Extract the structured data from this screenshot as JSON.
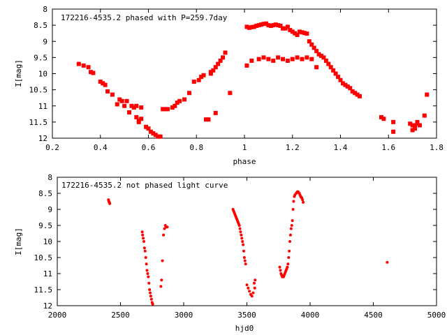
{
  "chart_data": [
    {
      "type": "scatter",
      "title": "172216-4535.2 phased with P=259.7day",
      "xlabel": "phase",
      "ylabel": "I[mag]",
      "xlim": [
        0.2,
        1.8
      ],
      "ylim": [
        12,
        8
      ],
      "y_inverted": true,
      "grid": false,
      "marker": "filled-square",
      "color": "#ff0000",
      "xticks": [
        "0.2",
        "0.4",
        "0.6",
        "0.8",
        "1",
        "1.2",
        "1.4",
        "1.6",
        "1.8"
      ],
      "yticks": [
        "8",
        "8.5",
        "9",
        "9.5",
        "10",
        "10.5",
        "11",
        "11.5",
        "12"
      ],
      "x": [
        0.31,
        0.33,
        0.35,
        0.36,
        0.37,
        0.4,
        0.41,
        0.42,
        0.43,
        0.45,
        0.47,
        0.48,
        0.49,
        0.5,
        0.51,
        0.52,
        0.53,
        0.54,
        0.55,
        0.55,
        0.56,
        0.56,
        0.57,
        0.57,
        0.59,
        0.6,
        0.61,
        0.62,
        0.63,
        0.64,
        0.65,
        0.66,
        0.67,
        0.68,
        0.7,
        0.71,
        0.72,
        0.73,
        0.75,
        0.77,
        0.79,
        0.81,
        0.82,
        0.83,
        0.84,
        0.85,
        0.86,
        0.86,
        0.87,
        0.88,
        0.88,
        0.89,
        0.9,
        0.91,
        0.92,
        0.94,
        1.01,
        1.02,
        1.03,
        1.04,
        1.05,
        1.06,
        1.07,
        1.08,
        1.09,
        1.1,
        1.11,
        1.12,
        1.13,
        1.14,
        1.15,
        1.16,
        1.17,
        1.18,
        1.19,
        1.2,
        1.21,
        1.22,
        1.23,
        1.24,
        1.25,
        1.26,
        1.27,
        1.28,
        1.29,
        1.3,
        1.31,
        1.32,
        1.33,
        1.34,
        1.35,
        1.36,
        1.37,
        1.38,
        1.39,
        1.4,
        1.41,
        1.42,
        1.43,
        1.44,
        1.45,
        1.46,
        1.47,
        1.48,
        1.57,
        1.58,
        1.62,
        1.62,
        1.69,
        1.7,
        1.7,
        1.71,
        1.71,
        1.72,
        1.72,
        1.73,
        1.75,
        1.76,
        1.01,
        1.03,
        1.06,
        1.08,
        1.1,
        1.12,
        1.14,
        1.16,
        1.18,
        1.2,
        1.22,
        1.24,
        1.26,
        1.28,
        1.3
      ],
      "y": [
        9.7,
        9.75,
        9.8,
        9.95,
        9.98,
        10.25,
        10.3,
        10.35,
        10.55,
        10.65,
        10.95,
        10.8,
        10.85,
        11.0,
        10.85,
        11.2,
        11.0,
        11.05,
        11.35,
        11.0,
        11.45,
        11.5,
        11.05,
        11.4,
        11.65,
        11.7,
        11.8,
        11.85,
        11.9,
        11.95,
        11.95,
        11.1,
        11.1,
        11.1,
        11.05,
        11.0,
        10.9,
        10.85,
        10.8,
        10.6,
        10.25,
        10.2,
        10.1,
        10.05,
        11.42,
        11.42,
        10.0,
        9.95,
        9.9,
        9.8,
        11.22,
        9.7,
        9.6,
        9.5,
        9.35,
        10.6,
        8.55,
        8.58,
        8.56,
        8.55,
        8.52,
        8.5,
        8.48,
        8.46,
        8.45,
        8.5,
        8.52,
        8.5,
        8.48,
        8.5,
        8.52,
        8.6,
        8.6,
        8.55,
        8.65,
        8.7,
        8.75,
        8.8,
        8.7,
        8.72,
        8.74,
        8.76,
        9.0,
        9.1,
        9.2,
        9.3,
        9.4,
        9.45,
        9.5,
        9.6,
        9.7,
        9.8,
        9.9,
        10.0,
        10.1,
        10.2,
        10.3,
        10.35,
        10.4,
        10.45,
        10.55,
        10.6,
        10.65,
        10.7,
        11.35,
        11.4,
        11.5,
        11.8,
        11.55,
        11.6,
        11.75,
        11.7,
        11.6,
        11.55,
        11.5,
        11.6,
        11.3,
        10.65,
        9.75,
        9.6,
        9.55,
        9.5,
        9.55,
        9.6,
        9.5,
        9.55,
        9.6,
        9.55,
        9.5,
        9.55,
        9.5,
        9.55,
        9.8
      ]
    },
    {
      "type": "scatter",
      "title": "172216-4535.2 not phased light curve",
      "xlabel": "hjd0",
      "ylabel": "I[mag]",
      "xlim": [
        2000,
        5000
      ],
      "ylim": [
        12,
        8
      ],
      "y_inverted": true,
      "grid": false,
      "marker": "filled-circle",
      "color": "#ff0000",
      "xticks": [
        "2000",
        "2500",
        "3000",
        "3500",
        "4000",
        "4500",
        "5000"
      ],
      "yticks": [
        "8",
        "8.5",
        "9",
        "9.5",
        "10",
        "10.5",
        "11",
        "11.5",
        "12"
      ],
      "x": [
        2405,
        2408,
        2412,
        2415,
        2672,
        2675,
        2680,
        2685,
        2690,
        2695,
        2700,
        2705,
        2710,
        2715,
        2720,
        2725,
        2730,
        2735,
        2740,
        2745,
        2750,
        2755,
        2820,
        2825,
        2832,
        2840,
        2848,
        2855,
        2862,
        2870,
        3390,
        3395,
        3400,
        3405,
        3410,
        3415,
        3420,
        3425,
        3430,
        3435,
        3440,
        3445,
        3450,
        3455,
        3460,
        3465,
        3470,
        3475,
        3480,
        3485,
        3490,
        3500,
        3510,
        3520,
        3530,
        3540,
        3550,
        3558,
        3562,
        3565,
        3760,
        3765,
        3770,
        3775,
        3780,
        3785,
        3790,
        3795,
        3800,
        3805,
        3810,
        3815,
        3820,
        3825,
        3830,
        3835,
        3840,
        3845,
        3850,
        3855,
        3860,
        3865,
        3870,
        3875,
        3880,
        3890,
        3895,
        3900,
        3905,
        3910,
        3915,
        3920,
        3925,
        3930,
        3935,
        3940,
        3945,
        4610
      ],
      "y": [
        8.7,
        8.75,
        8.78,
        8.82,
        9.7,
        9.8,
        9.9,
        10.0,
        10.2,
        10.3,
        10.5,
        10.7,
        10.9,
        11.0,
        11.1,
        11.3,
        11.5,
        11.6,
        11.7,
        11.8,
        11.9,
        11.95,
        11.4,
        11.2,
        10.6,
        9.8,
        9.6,
        9.5,
        9.55,
        9.55,
        9.0,
        9.05,
        9.1,
        9.15,
        9.2,
        9.25,
        9.3,
        9.35,
        9.4,
        9.45,
        9.5,
        9.6,
        9.7,
        9.8,
        9.9,
        10.0,
        10.1,
        10.3,
        10.5,
        10.6,
        10.7,
        11.35,
        11.45,
        11.55,
        11.65,
        11.7,
        11.6,
        11.3,
        11.45,
        11.2,
        10.8,
        10.9,
        11.0,
        11.05,
        11.1,
        11.1,
        11.1,
        11.05,
        11.0,
        10.95,
        10.9,
        10.85,
        10.8,
        10.7,
        10.5,
        10.3,
        10.0,
        9.8,
        9.6,
        9.5,
        9.35,
        9.0,
        8.75,
        8.6,
        8.55,
        8.5,
        8.48,
        8.45,
        8.45,
        8.48,
        8.5,
        8.55,
        8.6,
        8.62,
        8.65,
        8.7,
        8.78,
        10.65
      ]
    }
  ]
}
